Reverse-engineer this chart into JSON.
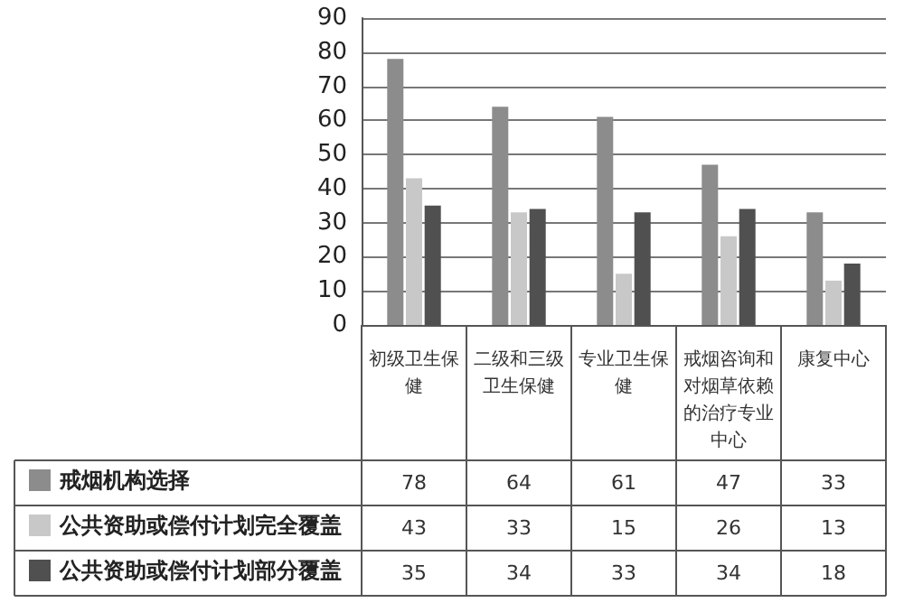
{
  "chart_data": {
    "type": "bar",
    "categories": [
      "初级卫生保健",
      "二级和三级卫生保健",
      "专业卫生保健",
      "戒烟咨询和对烟草依赖的治疗专业中心",
      "康复中心"
    ],
    "series": [
      {
        "name": "戒烟机构选择",
        "color": "#8c8c8c",
        "values": [
          78,
          64,
          61,
          47,
          33
        ]
      },
      {
        "name": "公共资助或偿付计划完全覆盖",
        "color": "#c8c8c8",
        "values": [
          43,
          33,
          15,
          26,
          13
        ]
      },
      {
        "name": "公共资助或偿付计划部分覆盖",
        "color": "#505050",
        "values": [
          35,
          34,
          33,
          34,
          18
        ]
      }
    ],
    "ylim": [
      0,
      90
    ],
    "yticks": [
      0,
      10,
      20,
      30,
      40,
      50,
      60,
      70,
      80,
      90
    ],
    "grid": "y",
    "legend": "bottom left",
    "data_labels": true
  }
}
